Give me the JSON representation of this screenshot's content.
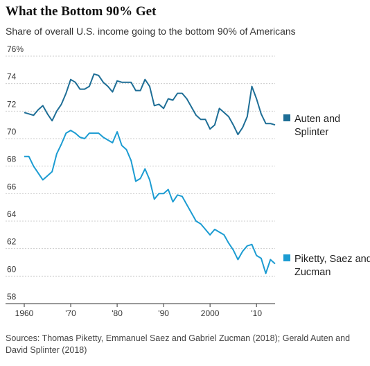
{
  "title": "What the Bottom 90% Get",
  "subtitle": "Share of overall U.S. income going to the bottom 90% of Americans",
  "source": "Sources: Thomas Piketty, Emmanuel Saez and Gabriel Zucman (2018); Gerald Auten and David Splinter (2018)",
  "colors": {
    "auten": "#1e6e96",
    "piketty": "#1c9cd2",
    "grid": "#cccccc",
    "axis": "#333333"
  },
  "chart_data": {
    "type": "line",
    "title": "What the Bottom 90% Get",
    "subtitle": "Share of overall U.S. income going to the bottom 90% of Americans",
    "xlabel": "",
    "ylabel": "",
    "xlim": [
      1960,
      2014
    ],
    "ylim": [
      58,
      76
    ],
    "grid": true,
    "x_ticks": [
      {
        "value": 1960,
        "label": "1960"
      },
      {
        "value": 1970,
        "label": "'70"
      },
      {
        "value": 1980,
        "label": "'80"
      },
      {
        "value": 1990,
        "label": "'90"
      },
      {
        "value": 2000,
        "label": "2000"
      },
      {
        "value": 2010,
        "label": "'10"
      }
    ],
    "y_ticks": [
      {
        "value": 58,
        "label": "58"
      },
      {
        "value": 60,
        "label": "60"
      },
      {
        "value": 62,
        "label": "62"
      },
      {
        "value": 64,
        "label": "64"
      },
      {
        "value": 66,
        "label": "66"
      },
      {
        "value": 68,
        "label": "68"
      },
      {
        "value": 70,
        "label": "70"
      },
      {
        "value": 72,
        "label": "72"
      },
      {
        "value": 74,
        "label": "74"
      },
      {
        "value": 76,
        "label": "76%"
      }
    ],
    "x": [
      1960,
      1961,
      1962,
      1963,
      1964,
      1965,
      1966,
      1967,
      1968,
      1969,
      1970,
      1971,
      1972,
      1973,
      1974,
      1975,
      1976,
      1977,
      1978,
      1979,
      1980,
      1981,
      1982,
      1983,
      1984,
      1985,
      1986,
      1987,
      1988,
      1989,
      1990,
      1991,
      1992,
      1993,
      1994,
      1995,
      1996,
      1997,
      1998,
      1999,
      2000,
      2001,
      2002,
      2003,
      2004,
      2005,
      2006,
      2007,
      2008,
      2009,
      2010,
      2011,
      2012,
      2013,
      2014
    ],
    "series": [
      {
        "name": "Auten and Splinter",
        "color_key": "auten",
        "values": [
          71.9,
          71.8,
          71.7,
          72.1,
          72.4,
          71.8,
          71.3,
          72.0,
          72.5,
          73.3,
          74.3,
          74.1,
          73.6,
          73.6,
          73.8,
          74.7,
          74.6,
          74.1,
          73.8,
          73.4,
          74.2,
          74.1,
          74.1,
          74.1,
          73.5,
          73.5,
          74.3,
          73.8,
          72.4,
          72.5,
          72.2,
          72.9,
          72.8,
          73.3,
          73.3,
          72.9,
          72.3,
          71.7,
          71.4,
          71.4,
          70.7,
          71.0,
          72.2,
          71.9,
          71.6,
          71.0,
          70.3,
          70.8,
          71.6,
          73.8,
          72.9,
          71.8,
          71.1,
          71.1,
          71.0
        ]
      },
      {
        "name": "Piketty, Saez and Zucman",
        "color_key": "piketty",
        "values": [
          68.7,
          68.7,
          68.0,
          67.5,
          67.0,
          67.3,
          67.6,
          68.9,
          69.6,
          70.4,
          70.6,
          70.4,
          70.1,
          70.0,
          70.4,
          70.4,
          70.4,
          70.1,
          69.9,
          69.7,
          70.5,
          69.5,
          69.2,
          68.4,
          66.9,
          67.1,
          67.8,
          67.0,
          65.6,
          66.0,
          66.0,
          66.3,
          65.4,
          65.9,
          65.8,
          65.2,
          64.6,
          64.0,
          63.8,
          63.4,
          63.0,
          63.4,
          63.2,
          63.0,
          62.4,
          61.9,
          61.2,
          61.8,
          62.2,
          62.3,
          61.5,
          61.3,
          60.2,
          61.2,
          60.9
        ]
      }
    ],
    "legend": [
      {
        "name": "Auten and Splinter",
        "lines": [
          "Auten and",
          "Splinter"
        ],
        "color_key": "auten"
      },
      {
        "name": "Piketty, Saez and Zucman",
        "lines": [
          "Piketty, Saez and",
          "Zucman"
        ],
        "color_key": "piketty"
      }
    ]
  }
}
